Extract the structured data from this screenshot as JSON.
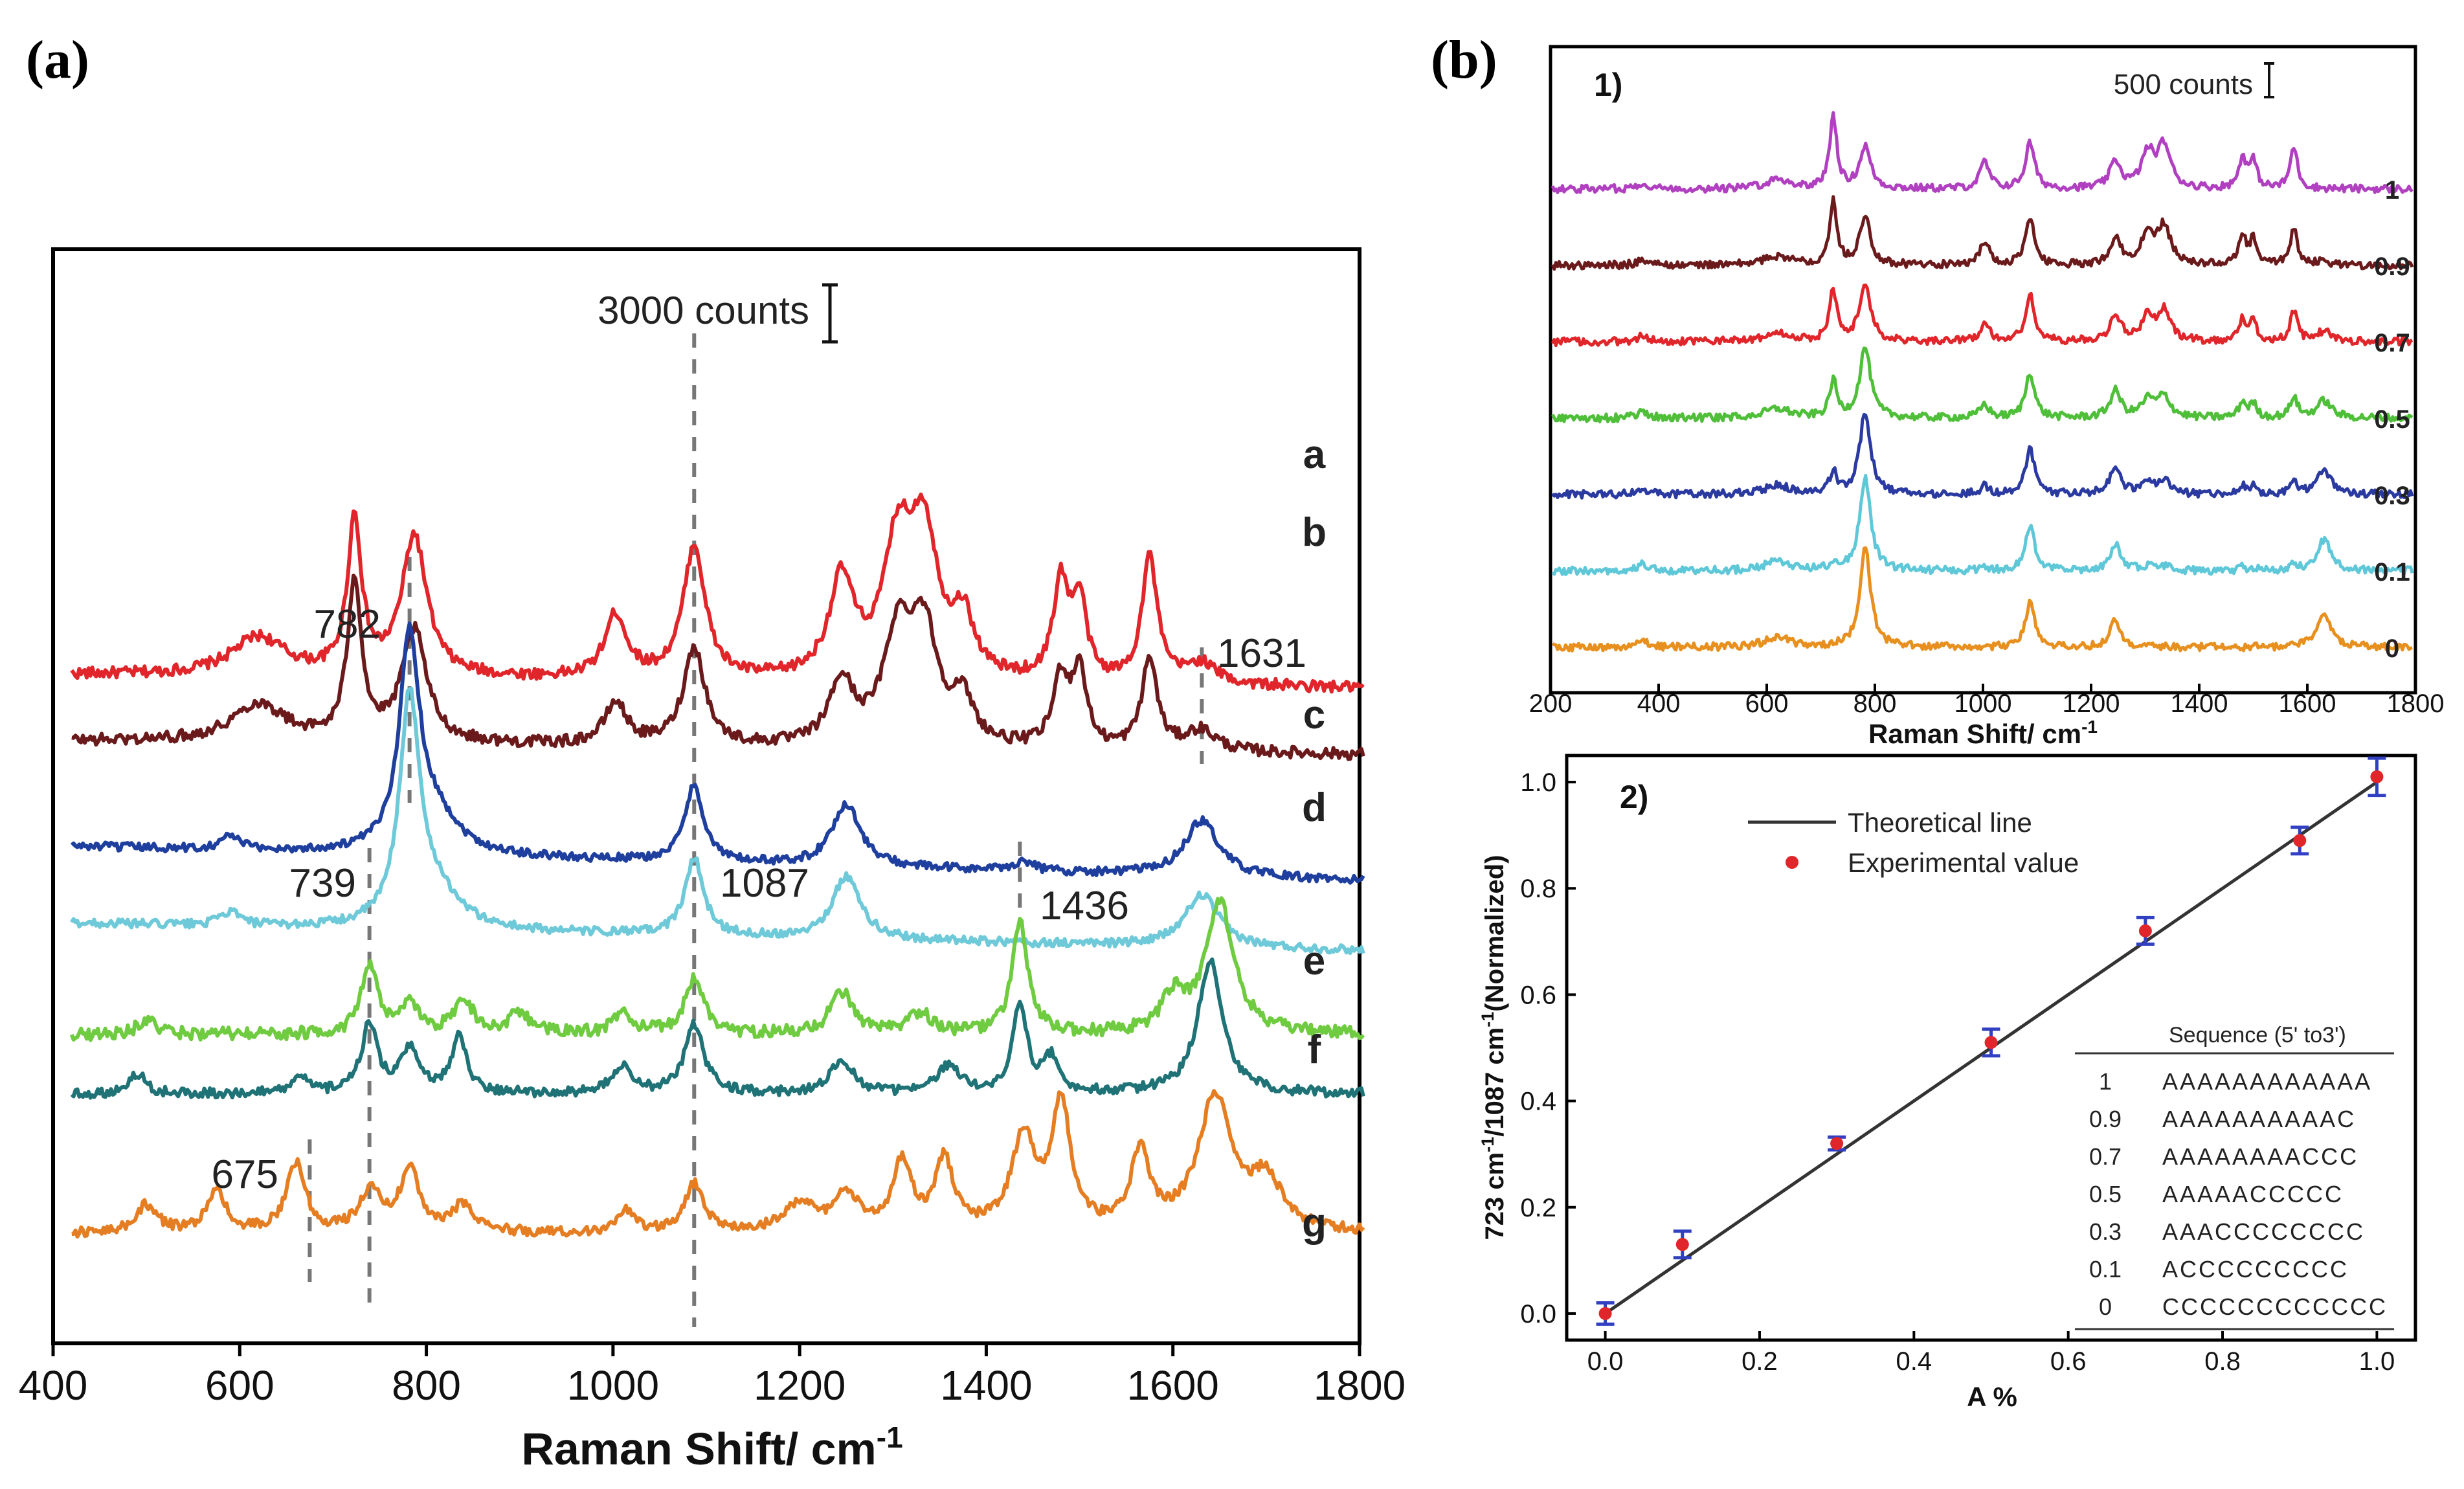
{
  "panels": {
    "a": {
      "panel_label": "(a)",
      "chart_data": {
        "type": "line",
        "title": "",
        "xlabel": "Raman Shift/ cm-1",
        "xlabel_base": "Raman Shift/ cm",
        "xlabel_sup": "-1",
        "xlim": [
          400,
          1800
        ],
        "xticks": [
          400,
          600,
          800,
          1000,
          1200,
          1400,
          1600,
          1800
        ],
        "xtick_labels": [
          "400",
          "600",
          "800",
          "1000",
          "1200",
          "1400",
          "1600",
          "1800"
        ],
        "scale_bar_label": "3000 counts",
        "series": [
          {
            "name": "a",
            "color": "#e0262a",
            "baseline": 5.9,
            "noise": 0.08,
            "tilt": -0.1,
            "peaks": [
              [
                620,
                0.55,
                35
              ],
              [
                723,
                2.2,
                9
              ],
              [
                787,
                2.0,
                16
              ],
              [
                1003,
                0.9,
                14
              ],
              [
                1087,
                1.9,
                14
              ],
              [
                1245,
                1.4,
                16
              ],
              [
                1305,
                1.8,
                18
              ],
              [
                1333,
                2.0,
                18
              ],
              [
                1375,
                0.8,
                14
              ],
              [
                1480,
                1.4,
                10
              ],
              [
                1500,
                1.1,
                9
              ],
              [
                1575,
                1.8,
                10
              ],
              [
                1630,
                0.3,
                20
              ]
            ]
          },
          {
            "name": "b",
            "color": "#6b1a1c",
            "baseline": 4.95,
            "noise": 0.08,
            "tilt": -0.1,
            "peaks": [
              [
                620,
                0.55,
                35
              ],
              [
                723,
                2.3,
                9
              ],
              [
                787,
                1.6,
                16
              ],
              [
                1003,
                0.6,
                14
              ],
              [
                1087,
                1.4,
                14
              ],
              [
                1245,
                0.9,
                16
              ],
              [
                1305,
                1.5,
                18
              ],
              [
                1333,
                1.6,
                18
              ],
              [
                1375,
                0.6,
                14
              ],
              [
                1480,
                1.0,
                10
              ],
              [
                1500,
                1.1,
                9
              ],
              [
                1575,
                1.3,
                10
              ],
              [
                1630,
                0.3,
                20
              ]
            ]
          },
          {
            "name": "c",
            "color": "#1f3f9e",
            "baseline": 3.3,
            "noise": 0.06,
            "tilt": -0.25,
            "peaks": [
              [
                590,
                0.2,
                12
              ],
              [
                782,
                3.0,
                13
              ],
              [
                810,
                0.5,
                30
              ],
              [
                1087,
                1.1,
                12
              ],
              [
                1250,
                0.9,
                18
              ],
              [
                1440,
                0.15,
                12
              ],
              [
                1631,
                0.8,
                22
              ]
            ]
          },
          {
            "name": "d",
            "color": "#6ec9d8",
            "baseline": 2.25,
            "noise": 0.06,
            "tilt": -0.2,
            "peaks": [
              [
                590,
                0.2,
                12
              ],
              [
                782,
                3.2,
                13
              ],
              [
                810,
                0.5,
                30
              ],
              [
                1087,
                1.1,
                12
              ],
              [
                1250,
                0.9,
                18
              ],
              [
                1631,
                0.75,
                22
              ]
            ]
          },
          {
            "name": "e",
            "color": "#6fcb3f",
            "baseline": 0.85,
            "noise": 0.09,
            "tilt": 0.0,
            "peaks": [
              [
                500,
                0.2,
                12
              ],
              [
                739,
                1.0,
                10
              ],
              [
                782,
                0.4,
                12
              ],
              [
                840,
                0.5,
                12
              ],
              [
                900,
                0.3,
                14
              ],
              [
                1010,
                0.3,
                12
              ],
              [
                1087,
                0.8,
                12
              ],
              [
                1245,
                0.6,
                14
              ],
              [
                1330,
                0.3,
                14
              ],
              [
                1436,
                1.6,
                10
              ],
              [
                1600,
                0.5,
                14
              ],
              [
                1650,
                1.9,
                18
              ]
            ]
          },
          {
            "name": "f",
            "color": "#1f7275",
            "baseline": 0.0,
            "noise": 0.07,
            "tilt": 0.0,
            "peaks": [
              [
                490,
                0.3,
                10
              ],
              [
                665,
                0.2,
                12
              ],
              [
                739,
                1.0,
                10
              ],
              [
                782,
                0.6,
                12
              ],
              [
                835,
                0.8,
                10
              ],
              [
                1010,
                0.4,
                12
              ],
              [
                1087,
                1.0,
                12
              ],
              [
                1245,
                0.5,
                14
              ],
              [
                1360,
                0.4,
                14
              ],
              [
                1436,
                1.3,
                9
              ],
              [
                1470,
                0.5,
                10
              ],
              [
                1640,
                1.9,
                16
              ]
            ]
          },
          {
            "name": "g",
            "color": "#e57e23",
            "baseline": -2.0,
            "noise": 0.07,
            "tilt": 0.0,
            "peaks": [
              [
                500,
                0.4,
                14
              ],
              [
                575,
                0.6,
                12
              ],
              [
                660,
                1.0,
                12
              ],
              [
                740,
                0.6,
                14
              ],
              [
                782,
                0.9,
                12
              ],
              [
                840,
                0.4,
                14
              ],
              [
                1015,
                0.3,
                12
              ],
              [
                1087,
                0.7,
                12
              ],
              [
                1200,
                0.4,
                20
              ],
              [
                1250,
                0.5,
                16
              ],
              [
                1310,
                1.0,
                12
              ],
              [
                1355,
                1.0,
                12
              ],
              [
                1440,
                1.3,
                16
              ],
              [
                1480,
                1.8,
                12
              ],
              [
                1565,
                1.1,
                12
              ],
              [
                1645,
                1.9,
                22
              ],
              [
                1700,
                0.7,
                20
              ]
            ]
          }
        ],
        "annotations": [
          {
            "text": "782",
            "x": 782
          },
          {
            "text": "1631",
            "x": 1631
          },
          {
            "text": "739",
            "x": 739
          },
          {
            "text": "1087",
            "x": 1087
          },
          {
            "text": "1436",
            "x": 1436
          },
          {
            "text": "675",
            "x": 675
          }
        ]
      }
    },
    "b": {
      "panel_label": "(b)",
      "chart1": {
        "sub_label": "1)",
        "chart_data": {
          "type": "line",
          "xlabel": "Raman Shift/ cm-1",
          "xlabel_base": "Raman Shift/ cm",
          "xlabel_sup": "-1",
          "xlim": [
            200,
            1800
          ],
          "xticks": [
            200,
            400,
            600,
            800,
            1000,
            1200,
            1400,
            1600,
            1800
          ],
          "xtick_labels": [
            "200",
            "400",
            "600",
            "800",
            "1000",
            "1200",
            "1400",
            "1600",
            "1800"
          ],
          "scale_bar_label": "500 counts",
          "series": [
            {
              "name": "1",
              "color": "#b040c0",
              "a_frac": 1.0,
              "baseline": 6.0
            },
            {
              "name": "0.9",
              "color": "#6b1a1c",
              "a_frac": 0.9,
              "baseline": 5.0
            },
            {
              "name": "0.7",
              "color": "#e0262a",
              "a_frac": 0.7,
              "baseline": 4.0
            },
            {
              "name": "0.5",
              "color": "#4fbf3a",
              "a_frac": 0.5,
              "baseline": 3.0
            },
            {
              "name": "0.3",
              "color": "#2a3aa0",
              "a_frac": 0.3,
              "baseline": 2.0
            },
            {
              "name": "0.1",
              "color": "#5fc8d8",
              "a_frac": 0.1,
              "baseline": 1.0
            },
            {
              "name": "0",
              "color": "#e8901f",
              "a_frac": 0.0,
              "baseline": 0.0
            }
          ]
        }
      },
      "chart2": {
        "sub_label": "2)",
        "chart_data": {
          "type": "scatter",
          "xlabel": "A %",
          "ylabel": "723 cm-1/1087 cm-1(Normalized)",
          "ylabel_parts": [
            "723 cm",
            "-1",
            "/1087 cm",
            "-1",
            "(Normalized)"
          ],
          "xlim": [
            -0.05,
            1.05
          ],
          "ylim": [
            -0.05,
            1.05
          ],
          "xticks": [
            0.0,
            0.2,
            0.4,
            0.6,
            0.8,
            1.0
          ],
          "xtick_labels": [
            "0.0",
            "0.2",
            "0.4",
            "0.6",
            "0.8",
            "1.0"
          ],
          "yticks": [
            0.0,
            0.2,
            0.4,
            0.6,
            0.8,
            1.0
          ],
          "ytick_labels": [
            "0.0",
            "0.2",
            "0.4",
            "0.6",
            "0.8",
            "1.0"
          ],
          "theoretical_line": {
            "x": [
              0.0,
              1.0
            ],
            "y": [
              0.0,
              1.0
            ],
            "color": "#333333"
          },
          "experimental": {
            "x": [
              0.0,
              0.1,
              0.3,
              0.5,
              0.7,
              0.9,
              1.0
            ],
            "y": [
              0.0,
              0.13,
              0.32,
              0.51,
              0.72,
              0.89,
              1.01
            ],
            "err": [
              0.02,
              0.025,
              0.012,
              0.025,
              0.025,
              0.025,
              0.035
            ],
            "color": "#e0262a",
            "err_color": "#3040c0"
          },
          "legend": [
            {
              "label": "Theoretical line",
              "kind": "line"
            },
            {
              "label": "Experimental value",
              "kind": "marker"
            }
          ],
          "sequence_table": {
            "header": "Sequence (5' to3')",
            "rows": [
              {
                "frac": "1",
                "seq": "AAAAAAAAAAAA"
              },
              {
                "frac": "0.9",
                "seq": "AAAAAAAAAAC"
              },
              {
                "frac": "0.7",
                "seq": "AAAAAAAACCC"
              },
              {
                "frac": "0.5",
                "seq": "AAAAACCCCC"
              },
              {
                "frac": "0.3",
                "seq": "AAACCCCCCCC"
              },
              {
                "frac": "0.1",
                "seq": "ACCCCCCCCC"
              },
              {
                "frac": "0",
                "seq": "CCCCCCCCCCCC"
              }
            ]
          }
        }
      }
    }
  }
}
